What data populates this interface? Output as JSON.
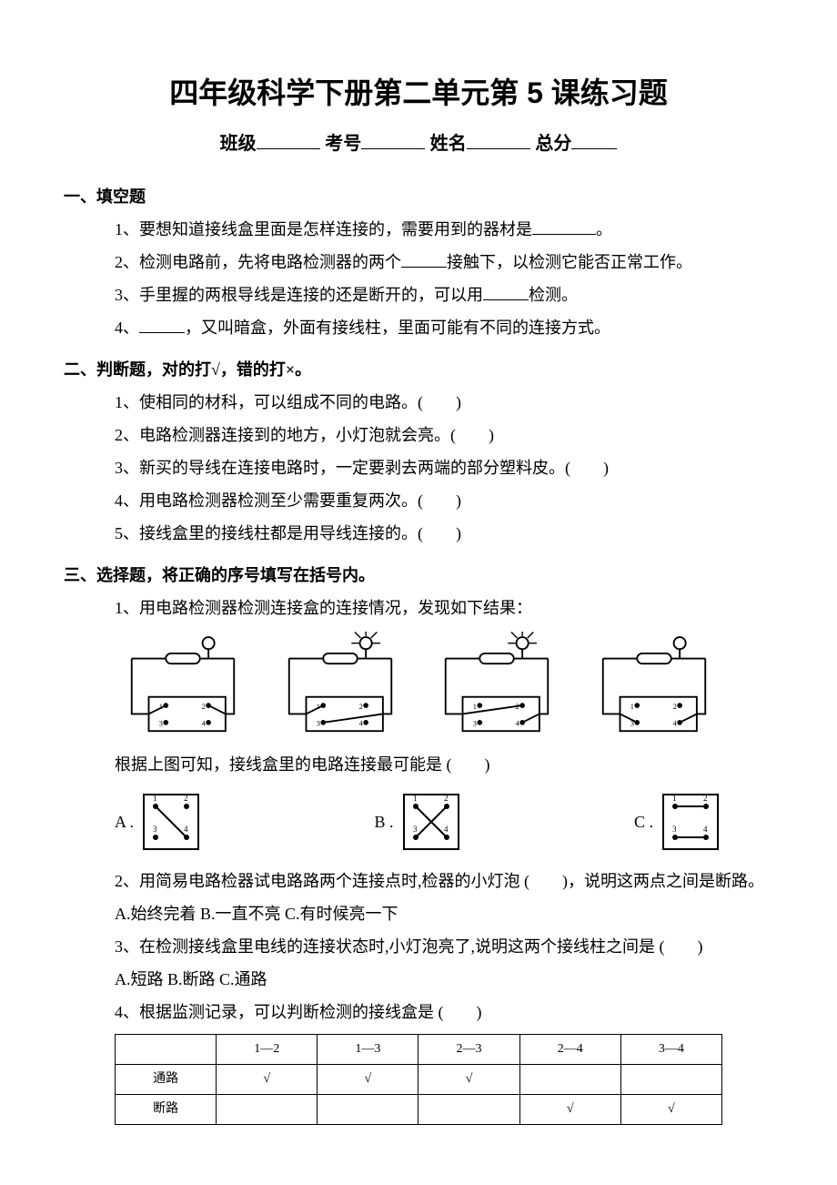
{
  "title": "四年级科学下册第二单元第 5 课练习题",
  "info": {
    "class_label": "班级",
    "exam_no_label": "考号",
    "name_label": "姓名",
    "total_label": "总分"
  },
  "sections": {
    "fill": {
      "heading": "一、填空题",
      "q1": "1、要想知道接线盒里面是怎样连接的，需要用到的器材是",
      "q1_end": "。",
      "q2a": "2、检测电路前，先将电路检测器的两个",
      "q2b": "接触下，以检测它能否正常工作。",
      "q3a": "3、手里握的两根导线是连接的还是断开的，可以用",
      "q3b": "检测。",
      "q4a": "4、",
      "q4b": "，又叫暗盒，外面有接线柱，里面可能有不同的连接方式。"
    },
    "judge": {
      "heading": "二、判断题，对的打√，错的打×。",
      "q1": "1、使相同的材科，可以组成不同的电路。(　　)",
      "q2": "2、电路检测器连接到的地方，小灯泡就会亮。(　　)",
      "q3": "3、新买的导线在连接电路时，一定要剥去两端的部分塑料皮。(　　)",
      "q4": "4、用电路检测器检测至少需要重复两次。(　　)",
      "q5": "5、接线盒里的接线柱都是用导线连接的。(　　)"
    },
    "choice": {
      "heading": "三、选择题，将正确的序号填写在括号内。",
      "q1": "1、用电路检测器检测连接盒的连接情况，发现如下结果：",
      "q1_post": "根据上图可知，接线盒里的电路连接最可能是 (　　)",
      "optA": "A .",
      "optB": "B .",
      "optC": "C .",
      "q2": "2、用简易电路检器试电路路两个连接点时,检器的小灯泡 (　　)，说明这两点之间是断路。",
      "q2_opts": "A.始终完着  B.一直不亮  C.有时候亮一下",
      "q3": "3、在检测接线盒里电线的连接状态时,小灯泡亮了,说明这两个接线柱之间是 (　　)",
      "q3_opts": "A.短路  B.断路  C.通路",
      "q4": "4、根据监测记录，可以判断检测的接线盒是 (　　)"
    }
  },
  "circuits": [
    {
      "bulb_on": false,
      "probes": [
        1,
        2
      ]
    },
    {
      "bulb_on": true,
      "probes": [
        1,
        3
      ]
    },
    {
      "bulb_on": true,
      "probes": [
        2,
        4
      ]
    },
    {
      "bulb_on": false,
      "probes": [
        3,
        4
      ]
    }
  ],
  "option_boxes": [
    {
      "label": "A",
      "lines": [
        [
          1,
          4
        ]
      ]
    },
    {
      "label": "B",
      "lines": [
        [
          1,
          4
        ],
        [
          2,
          3
        ]
      ]
    },
    {
      "label": "C",
      "lines": [
        [
          1,
          2
        ],
        [
          3,
          4
        ]
      ]
    }
  ],
  "table": {
    "columns": [
      "",
      "1—2",
      "1—3",
      "2—3",
      "2—4",
      "3—4"
    ],
    "rows": [
      {
        "label": "通路",
        "cells": [
          "√",
          "√",
          "√",
          "",
          ""
        ]
      },
      {
        "label": "断路",
        "cells": [
          "",
          "",
          "",
          "√",
          "√"
        ]
      }
    ]
  },
  "style": {
    "stroke": "#000000",
    "stroke_width": 2
  }
}
